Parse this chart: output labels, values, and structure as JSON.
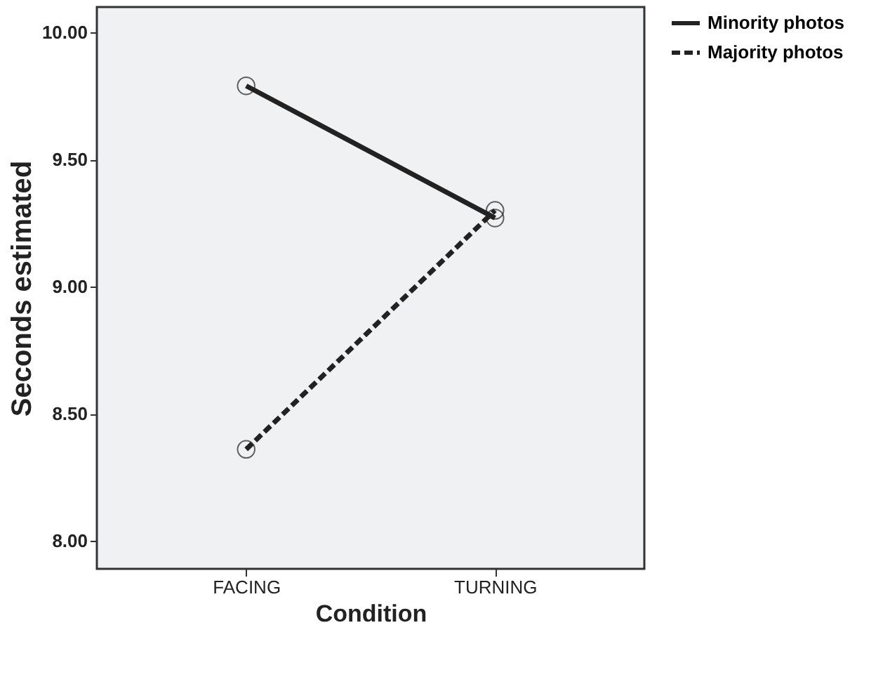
{
  "chart_data": {
    "type": "line",
    "xlabel": "Condition",
    "ylabel": "Seconds estimated",
    "categories": [
      "FACING",
      "TURNING"
    ],
    "series": [
      {
        "name": "Minority photos",
        "color": "#222222",
        "values": [
          9.79,
          9.27
        ],
        "line_style": "solid"
      },
      {
        "name": "Majority photos",
        "color": "#222222",
        "values": [
          8.36,
          9.3
        ],
        "line_style": "dashed"
      }
    ],
    "ylim": [
      7.89,
      10.1
    ],
    "yticks": [
      {
        "value": 8,
        "label": "8.00"
      },
      {
        "value": 8.5,
        "label": "8.50"
      },
      {
        "value": 9,
        "label": "9.00"
      },
      {
        "value": 9.5,
        "label": "9.50"
      },
      {
        "value": 10,
        "label": "10.00"
      }
    ],
    "marker": "circle",
    "grid": false,
    "legend": "top right"
  }
}
